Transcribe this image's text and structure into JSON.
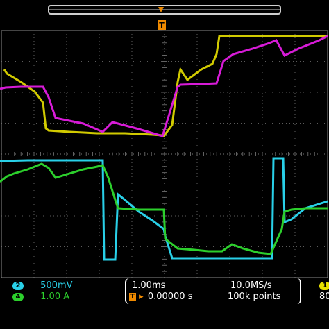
{
  "colors": {
    "ch1": "#e8e000",
    "ch2": "#29d0e8",
    "ch3": "#d81bd8",
    "ch4": "#2ccf2c",
    "trigger": "#f08a00",
    "grid": "#7a7a7a",
    "background": "#000000"
  },
  "top_bar": {
    "trigger_marker_label": "T",
    "channel_marker_icon": "arrow-down-icon"
  },
  "channels": [
    {
      "id": "2",
      "scale": "500mV",
      "color": "#29d0e8"
    },
    {
      "id": "4",
      "scale": "1.00 A",
      "color": "#2ccf2c"
    }
  ],
  "timebase": {
    "time_per_div": "1.00ms",
    "trigger_position": "0.00000 s",
    "sample_rate": "10.0MS/s",
    "record_length": "100k points"
  },
  "trigger": {
    "channel": "1",
    "level_partial": "80"
  }
}
